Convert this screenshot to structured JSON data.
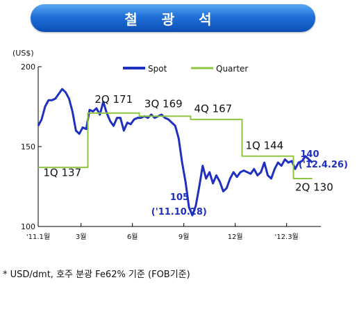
{
  "banner": {
    "title": "철 광 석",
    "color": "#1f6fd8"
  },
  "footnote": "* USD/dmt, 호주 분광 Fe62% 기준 (FOB기준)",
  "chart_data": {
    "type": "line",
    "unit_label": "(US$)",
    "ylim": [
      100,
      200
    ],
    "yticks": [
      100,
      150,
      200
    ],
    "xlim": [
      0,
      16.5
    ],
    "xticks": [
      {
        "x": 0,
        "label": "'11.1월"
      },
      {
        "x": 2.5,
        "label": "3월"
      },
      {
        "x": 5.5,
        "label": "6월"
      },
      {
        "x": 8.5,
        "label": "9월"
      },
      {
        "x": 11.5,
        "label": "12월"
      },
      {
        "x": 14.5,
        "label": "'12.3월"
      }
    ],
    "series": [
      {
        "name": "Spot",
        "color": "#1f2fbf",
        "x": [
          0,
          0.2,
          0.4,
          0.6,
          0.8,
          1.0,
          1.2,
          1.4,
          1.6,
          1.8,
          2.0,
          2.2,
          2.4,
          2.6,
          2.8,
          3.0,
          3.2,
          3.4,
          3.6,
          3.8,
          4.0,
          4.2,
          4.4,
          4.6,
          4.8,
          5.0,
          5.2,
          5.4,
          5.6,
          5.8,
          6.0,
          6.2,
          6.4,
          6.6,
          6.8,
          7.0,
          7.2,
          7.4,
          7.6,
          7.8,
          8.0,
          8.2,
          8.4,
          8.6,
          8.8,
          9.0,
          9.2,
          9.4,
          9.6,
          9.8,
          10.0,
          10.2,
          10.4,
          10.6,
          10.8,
          11.0,
          11.2,
          11.4,
          11.6,
          11.8,
          12.0,
          12.2,
          12.4,
          12.6,
          12.8,
          13.0,
          13.2,
          13.4,
          13.6,
          13.8,
          14.0,
          14.2,
          14.4,
          14.6,
          14.8,
          15.0,
          15.2,
          15.4,
          15.6,
          15.8,
          16.0
        ],
        "values": [
          163,
          167,
          175,
          179,
          179,
          180,
          183,
          186,
          184,
          180,
          172,
          160,
          158,
          162,
          161,
          173,
          172,
          174,
          170,
          178,
          171,
          166,
          163,
          168,
          168,
          160,
          165,
          164,
          167,
          168,
          168,
          169,
          168,
          170,
          168,
          169,
          170,
          168,
          167,
          165,
          163,
          155,
          140,
          128,
          112,
          107,
          113,
          125,
          138,
          130,
          134,
          127,
          132,
          128,
          122,
          124,
          130,
          134,
          131,
          134,
          135,
          134,
          133,
          136,
          132,
          134,
          140,
          132,
          130,
          136,
          140,
          138,
          142,
          140,
          141,
          136,
          140,
          141,
          144,
          142,
          140
        ]
      },
      {
        "name": "Quarter",
        "color": "#8cc63f",
        "x": [
          0,
          2.9,
          2.9,
          5.9,
          5.9,
          8.9,
          8.9,
          11.9,
          11.9,
          14.9,
          14.9,
          16.0
        ],
        "values": [
          137,
          137,
          171,
          171,
          169,
          169,
          167,
          167,
          144,
          144,
          130,
          130
        ]
      }
    ],
    "annotations": [
      {
        "text": "1Q 137",
        "x": 0.3,
        "y": 131.5,
        "color": "#111111",
        "size": 15
      },
      {
        "text": "2Q 171",
        "x": 3.3,
        "y": 177.5,
        "color": "#111111",
        "size": 15
      },
      {
        "text": "3Q 169",
        "x": 6.2,
        "y": 174.5,
        "color": "#111111",
        "size": 15
      },
      {
        "text": "4Q 167",
        "x": 9.1,
        "y": 171.5,
        "color": "#111111",
        "size": 15
      },
      {
        "text": "1Q 144",
        "x": 12.1,
        "y": 148.5,
        "color": "#111111",
        "size": 15
      },
      {
        "text": "2Q 130",
        "x": 15.0,
        "y": 122.5,
        "color": "#111111",
        "size": 15
      },
      {
        "text": "105",
        "x": 7.7,
        "y": 116.5,
        "color": "#1f2fbf",
        "size": 13,
        "bold": true
      },
      {
        "text": "('11.10.28)",
        "x": 6.6,
        "y": 107.5,
        "color": "#1f2fbf",
        "size": 13,
        "bold": true
      },
      {
        "text": "140",
        "x": 15.3,
        "y": 143.5,
        "color": "#1f2fbf",
        "size": 13,
        "bold": true
      },
      {
        "text": "('12.4.26)",
        "x": 15.2,
        "y": 137,
        "color": "#1f2fbf",
        "size": 13,
        "bold": true
      }
    ],
    "legend": {
      "position": "top"
    },
    "grid": false
  }
}
